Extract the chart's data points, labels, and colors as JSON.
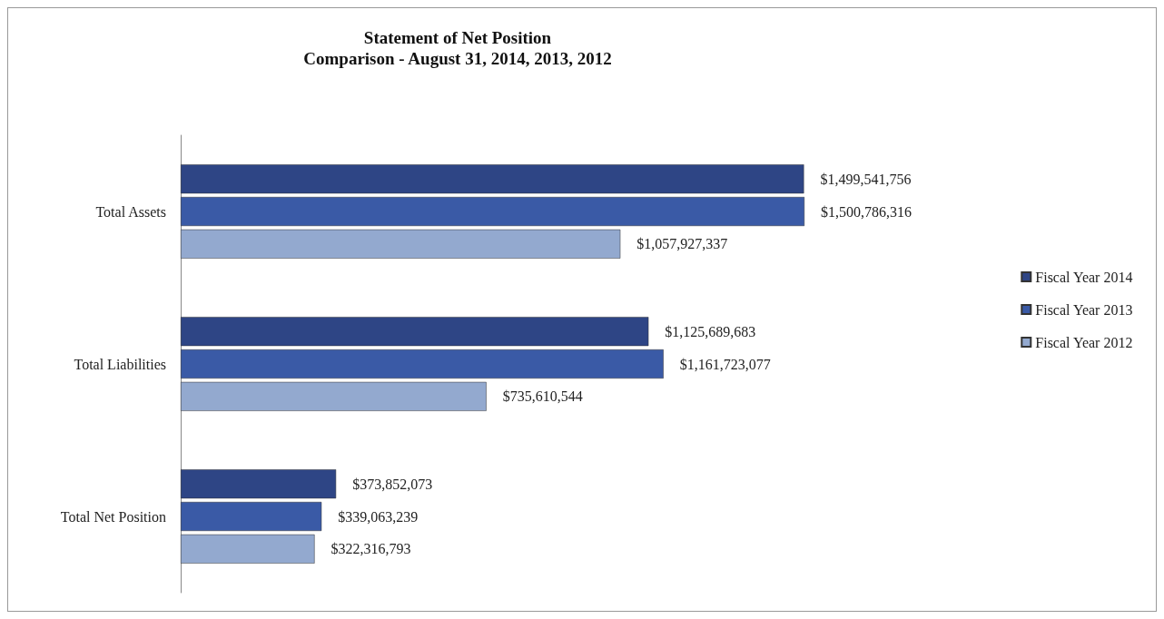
{
  "chart_data": {
    "type": "bar",
    "orientation": "horizontal",
    "title": "Statement of Net Position",
    "subtitle": "Comparison - August 31, 2014, 2013, 2012",
    "categories": [
      "Total Assets",
      "Total Liabilities",
      "Total Net Position"
    ],
    "series": [
      {
        "name": "Fiscal Year 2014",
        "color": "#2e4585",
        "values": [
          1499541756,
          1125689683,
          373852073
        ],
        "value_labels": [
          "$1,499,541,756",
          "$1,125,689,683",
          "$373,852,073"
        ]
      },
      {
        "name": "Fiscal Year 2013",
        "color": "#3a5aa6",
        "values": [
          1500786316,
          1161723077,
          339063239
        ],
        "value_labels": [
          "$1,500,786,316",
          "$1,161,723,077",
          "$339,063,239"
        ]
      },
      {
        "name": "Fiscal Year 2012",
        "color": "#93a9cf",
        "values": [
          1057927337,
          735610544,
          322316793
        ],
        "value_labels": [
          "$1,057,927,337",
          "$735,610,544",
          "$322,316,793"
        ]
      }
    ],
    "legend": "right",
    "tick_labels": "y"
  }
}
